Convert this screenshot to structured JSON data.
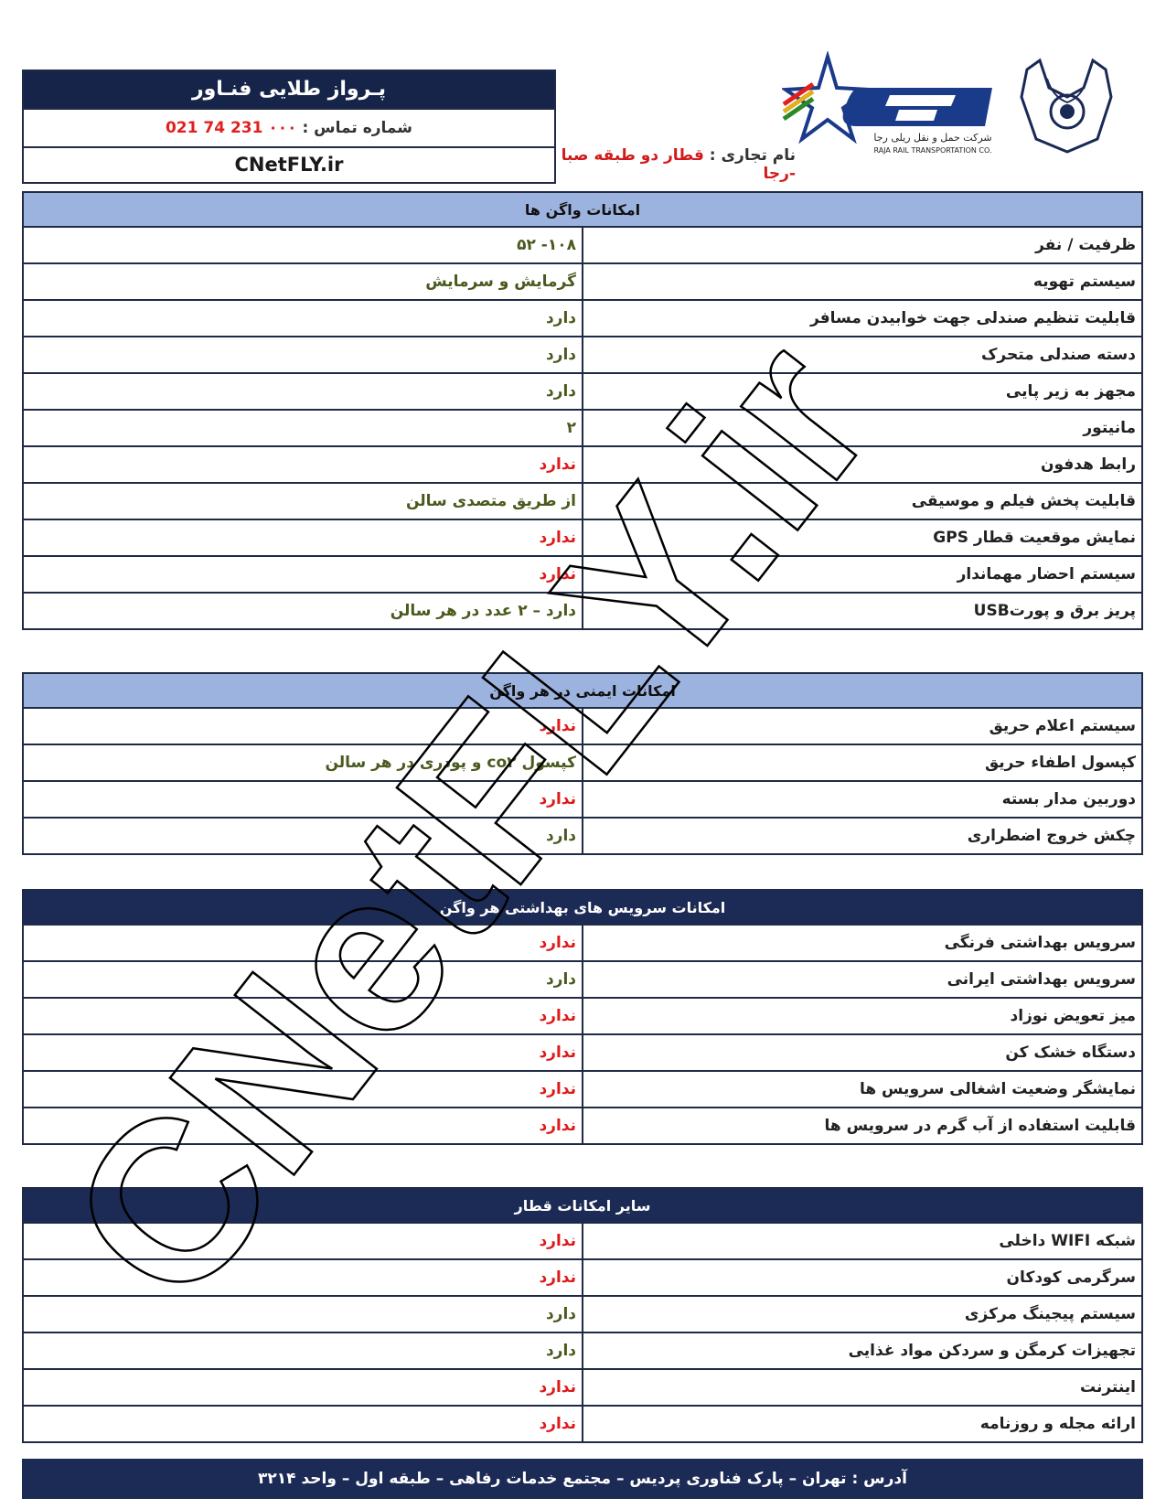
{
  "header": {
    "company": "پـرواز طلایی فنـاور",
    "contact_label": "شماره تماس : ",
    "contact_number": "۰۰۰ 231 74 021",
    "website": "CNetFLY.ir",
    "trade_label": "نام تجاری : ",
    "trade_value": "قطار دو طبقه صبا -رجا"
  },
  "logo": {
    "company_fa": "شرکت حمل و نقل ریلی رجا",
    "company_en": "RAJA RAIL TRANSPORTATION CO.",
    "colors": {
      "navy": "#1a3a8a",
      "red": "#e02020",
      "green": "#2a8a2a",
      "gold": "#e0b020"
    }
  },
  "sections": [
    {
      "title": "امکانات واگن ها",
      "style": "light",
      "rows": [
        {
          "label": "ظرفیت / نفر",
          "value": "۱۰۸- ۵۲",
          "status": "yes"
        },
        {
          "label": "سیستم تهویه",
          "value": "گرمایش و سرمایش",
          "status": "yes"
        },
        {
          "label": "قابلیت تنظیم صندلی جهت خوابیدن مسافر",
          "value": "دارد",
          "status": "yes"
        },
        {
          "label": "دسته صندلی متحرک",
          "value": "دارد",
          "status": "yes"
        },
        {
          "label": "مجهز به زیر پایی",
          "value": "دارد",
          "status": "yes"
        },
        {
          "label": "مانیتور",
          "value": "۲",
          "status": "yes"
        },
        {
          "label": "رابط هدفون",
          "value": "ندارد",
          "status": "no"
        },
        {
          "label": "قابلیت پخش فیلم و موسیقی",
          "value": "از طریق متصدی سالن",
          "status": "yes"
        },
        {
          "label": "نمایش موقعیت قطار GPS",
          "value": "ندارد",
          "status": "no"
        },
        {
          "label": "سیستم احضار مهماندار",
          "value": "ندارد",
          "status": "no"
        },
        {
          "label": "پریز برق و پورتUSB",
          "value": "دارد – ۲ عدد در هر سالن",
          "status": "yes"
        }
      ]
    },
    {
      "title": "امکانات ایمنی در هر واگن",
      "style": "light",
      "rows": [
        {
          "label": "سیستم اعلام حریق",
          "value": "ندارد",
          "status": "no"
        },
        {
          "label": "کپسول اطفاء حریق",
          "value": "کپسول co۲ و پودری در هر سالن",
          "status": "yes"
        },
        {
          "label": "دوربین مدار بسته",
          "value": "ندارد",
          "status": "no"
        },
        {
          "label": "چکش خروج اضطراری",
          "value": "دارد",
          "status": "yes"
        }
      ]
    },
    {
      "title": "امکانات سرویس های بهداشتی هر واگن",
      "style": "dark",
      "rows": [
        {
          "label": "سرویس بهداشتی فرنگی",
          "value": "ندارد",
          "status": "no"
        },
        {
          "label": "سرویس بهداشتی ایرانی",
          "value": "دارد",
          "status": "yes"
        },
        {
          "label": "میز تعویض نوزاد",
          "value": "ندارد",
          "status": "no"
        },
        {
          "label": "دستگاه خشک کن",
          "value": "ندارد",
          "status": "no"
        },
        {
          "label": "نمایشگر وضعیت اشغالی سرویس ها",
          "value": "ندارد",
          "status": "no"
        },
        {
          "label": "قابلیت استفاده از آب گرم در سرویس ها",
          "value": "ندارد",
          "status": "no"
        }
      ]
    },
    {
      "title": "سایر امکانات قطار",
      "style": "dark",
      "rows": [
        {
          "label": "شبکه WIFI داخلی",
          "value": "ندارد",
          "status": "no"
        },
        {
          "label": "سرگرمی کودکان",
          "value": "ندارد",
          "status": "no"
        },
        {
          "label": "سیستم پیجینگ مرکزی",
          "value": "دارد",
          "status": "yes"
        },
        {
          "label": "تجهیزات کرمگن و سردکن مواد غذایی",
          "value": "دارد",
          "status": "yes"
        },
        {
          "label": "اینترنت",
          "value": "ندارد",
          "status": "no"
        },
        {
          "label": "ارائه مجله و روزنامه",
          "value": "ندارد",
          "status": "no"
        }
      ]
    }
  ],
  "footer": {
    "address": "آدرس : تهران – پارک فناوری پردیس – مجتمع خدمات رفاهی – طبقه اول – واحد ۳۲۱۴"
  },
  "watermark": {
    "text": "CNetFLY.ir"
  }
}
